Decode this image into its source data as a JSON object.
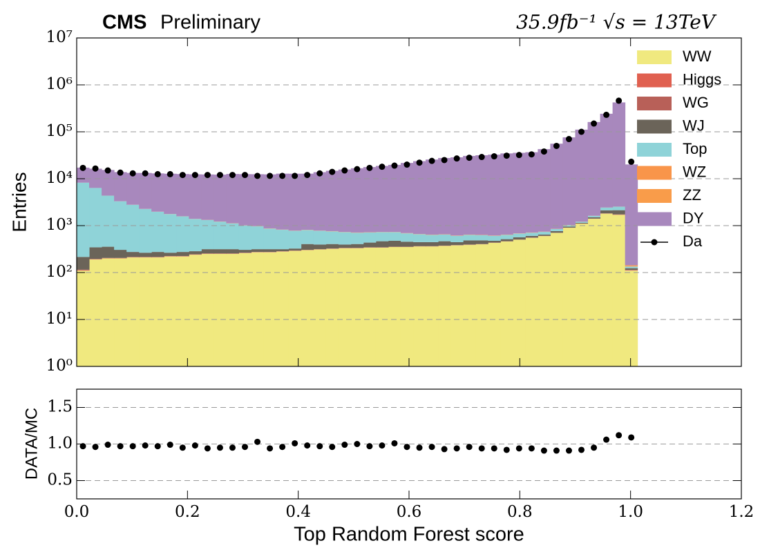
{
  "header": {
    "experiment": "CMS",
    "status": "Preliminary",
    "lumi_label": "35.9fb⁻¹ √s = 13TeV"
  },
  "chart_data": [
    {
      "type": "histogram",
      "stacked": true,
      "log_y": true,
      "grid": true,
      "legend": "upper right",
      "ylabel": "Entries",
      "bins": [
        0,
        0.0225,
        0.045,
        0.0675,
        0.09,
        0.1125,
        0.135,
        0.1575,
        0.18,
        0.2025,
        0.225,
        0.2475,
        0.27,
        0.2925,
        0.315,
        0.3375,
        0.36,
        0.3825,
        0.405,
        0.4275,
        0.45,
        0.4725,
        0.495,
        0.5175,
        0.54,
        0.5625,
        0.585,
        0.6075,
        0.63,
        0.6525,
        0.675,
        0.6975,
        0.72,
        0.7425,
        0.765,
        0.7875,
        0.81,
        0.8325,
        0.855,
        0.8775,
        0.9,
        0.9225,
        0.945,
        0.9675,
        0.99,
        1.0125
      ],
      "xlim": [
        0,
        1.2
      ],
      "ylim": [
        1,
        10000000
      ],
      "yticks": [
        {
          "value": 1,
          "label": "10⁰"
        },
        {
          "value": 10,
          "label": "10¹"
        },
        {
          "value": 100,
          "label": "10²"
        },
        {
          "value": 1000,
          "label": "10³"
        },
        {
          "value": 10000,
          "label": "10⁴"
        },
        {
          "value": 100000,
          "label": "10⁵"
        },
        {
          "value": 1000000,
          "label": "10⁶"
        },
        {
          "value": 10000000,
          "label": "10⁷"
        }
      ],
      "series": [
        {
          "name": "WW",
          "color": "#f0e97f",
          "values": [
            110,
            190,
            200,
            200,
            210,
            210,
            210,
            220,
            220,
            240,
            250,
            250,
            250,
            260,
            270,
            270,
            280,
            290,
            300,
            310,
            320,
            330,
            330,
            340,
            340,
            350,
            350,
            360,
            360,
            370,
            380,
            390,
            400,
            430,
            460,
            500,
            550,
            600,
            700,
            900,
            1100,
            1400,
            1800,
            1700,
            110
          ]
        },
        {
          "name": "Higgs",
          "color": "#e06050",
          "values": [
            3,
            3,
            3,
            3,
            3,
            3,
            3,
            3,
            3,
            3,
            3,
            3,
            3,
            3,
            3,
            3,
            3,
            3,
            3,
            3,
            3,
            3,
            3,
            3,
            3,
            3,
            3,
            3,
            3,
            3,
            3,
            3,
            3,
            3,
            3,
            3,
            3,
            3,
            3,
            3,
            5,
            10,
            20,
            30,
            2
          ]
        },
        {
          "name": "WG",
          "color": "#b86058",
          "values": [
            2,
            2,
            2,
            2,
            2,
            2,
            2,
            2,
            2,
            2,
            2,
            2,
            2,
            2,
            2,
            2,
            2,
            2,
            2,
            2,
            2,
            2,
            2,
            2,
            2,
            2,
            2,
            2,
            2,
            2,
            2,
            2,
            2,
            2,
            2,
            2,
            2,
            2,
            2,
            2,
            2,
            2,
            2,
            2,
            2
          ]
        },
        {
          "name": "WJ",
          "color": "#6b6459",
          "values": [
            100,
            150,
            150,
            100,
            60,
            50,
            60,
            40,
            50,
            40,
            60,
            60,
            60,
            40,
            40,
            40,
            30,
            30,
            100,
            80,
            80,
            60,
            70,
            90,
            120,
            120,
            100,
            80,
            80,
            90,
            60,
            90,
            80,
            40,
            50,
            60,
            50,
            40,
            60,
            50,
            40,
            100,
            300,
            400,
            10
          ]
        },
        {
          "name": "Top",
          "color": "#8fd3d8",
          "values": [
            8000,
            6000,
            4000,
            3000,
            2500,
            2000,
            1700,
            1500,
            1300,
            1100,
            1000,
            900,
            800,
            700,
            650,
            550,
            500,
            450,
            400,
            380,
            350,
            330,
            300,
            280,
            260,
            250,
            230,
            210,
            190,
            180,
            160,
            150,
            140,
            130,
            120,
            110,
            100,
            90,
            80,
            70,
            60,
            100,
            300,
            400,
            10
          ]
        },
        {
          "name": "WZ",
          "color": "#f9954a",
          "values": [
            5,
            5,
            5,
            5,
            5,
            5,
            5,
            5,
            5,
            5,
            5,
            5,
            5,
            5,
            5,
            5,
            5,
            5,
            5,
            5,
            5,
            5,
            5,
            5,
            5,
            5,
            5,
            5,
            5,
            5,
            5,
            5,
            5,
            5,
            5,
            5,
            5,
            5,
            5,
            5,
            5,
            5,
            5,
            5,
            5
          ]
        },
        {
          "name": "ZZ",
          "color": "#f99c4a",
          "values": [
            4,
            4,
            4,
            4,
            4,
            4,
            4,
            4,
            4,
            4,
            4,
            4,
            4,
            4,
            4,
            4,
            4,
            4,
            4,
            4,
            4,
            4,
            4,
            4,
            4,
            4,
            4,
            4,
            4,
            4,
            4,
            4,
            4,
            4,
            4,
            4,
            4,
            4,
            4,
            4,
            4,
            4,
            4,
            4,
            4
          ]
        },
        {
          "name": "DY",
          "color": "#a888bd",
          "values": [
            9000,
            10000,
            11000,
            10500,
            10500,
            11000,
            11000,
            11000,
            11000,
            11000,
            11000,
            11000,
            11500,
            11500,
            11500,
            11500,
            12000,
            12000,
            12000,
            13000,
            14000,
            15000,
            16000,
            17000,
            18000,
            19000,
            21000,
            23000,
            25000,
            27000,
            28000,
            30000,
            31000,
            32000,
            34000,
            35000,
            36000,
            42000,
            55000,
            75000,
            110000,
            160000,
            240000,
            420000,
            20000
          ]
        }
      ],
      "data": {
        "name": "Da",
        "color": "#000000",
        "values": [
          17000,
          16500,
          15000,
          13500,
          13000,
          13000,
          12500,
          12500,
          12000,
          12000,
          12000,
          12000,
          12000,
          12000,
          11500,
          11500,
          11500,
          11500,
          12000,
          13000,
          14000,
          15000,
          16000,
          17000,
          18000,
          19000,
          20000,
          22000,
          24000,
          25000,
          27000,
          28000,
          29000,
          30000,
          31000,
          32000,
          33000,
          38000,
          50000,
          70000,
          100000,
          150000,
          230000,
          460000,
          23000
        ]
      }
    },
    {
      "type": "scatter",
      "grid": true,
      "ylabel": "DATA/MC",
      "xlabel": "Top Random Forest score",
      "xlim": [
        0,
        1.2
      ],
      "xticks": [
        {
          "value": 0,
          "label": "0.0"
        },
        0.2,
        0.4,
        0.6,
        0.8,
        {
          "value": 1,
          "label": "1.0"
        },
        1.2
      ],
      "ylim": [
        0.25,
        1.75
      ],
      "yticks": [
        0.5,
        {
          "value": 1,
          "label": "1.0"
        },
        1.5
      ],
      "color": "#000000",
      "values": [
        0.97,
        0.96,
        0.99,
        0.97,
        0.97,
        0.98,
        0.97,
        0.99,
        0.95,
        0.98,
        0.94,
        0.95,
        0.95,
        0.96,
        1.03,
        0.94,
        0.96,
        1.01,
        0.98,
        0.97,
        0.96,
        0.99,
        1.0,
        0.97,
        0.98,
        1.01,
        0.96,
        0.95,
        0.96,
        0.93,
        0.94,
        0.96,
        0.94,
        0.94,
        0.92,
        0.94,
        0.94,
        0.91,
        0.91,
        0.91,
        0.92,
        0.95,
        1.06,
        1.12,
        1.09
      ]
    }
  ]
}
